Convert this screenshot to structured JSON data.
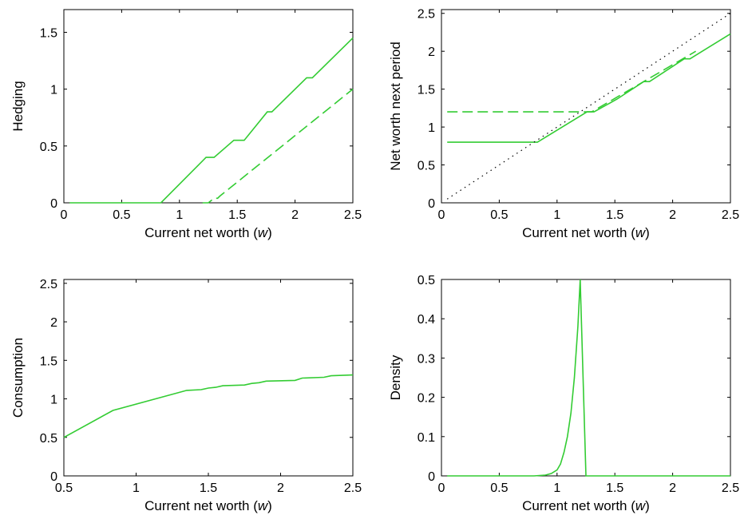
{
  "colors": {
    "line": "#33cc33",
    "axis": "#000000",
    "reference": "#000000"
  },
  "chart_data": [
    {
      "type": "line",
      "title": "",
      "xlabel": "Current net worth",
      "xlabel_var": "w",
      "ylabel": "Hedging",
      "xlim": [
        0,
        2.5
      ],
      "ylim": [
        0,
        1.7
      ],
      "xticks": [
        0,
        0.5,
        1,
        1.5,
        2,
        2.5
      ],
      "xtick_labels": [
        "0",
        "0.5",
        "1",
        "1.5",
        "2",
        "2.5"
      ],
      "yticks": [
        0,
        0.5,
        1,
        1.5
      ],
      "ytick_labels": [
        "0",
        "0.5",
        "1",
        "1.5"
      ],
      "grid": false,
      "legend": "none",
      "series": [
        {
          "style": "solid",
          "x": [
            0.05,
            0.84,
            1.23,
            1.26,
            1.3,
            1.47,
            1.5,
            1.56,
            1.76,
            1.8,
            2.1,
            2.15,
            2.5
          ],
          "y": [
            0,
            0,
            0.4,
            0.4,
            0.4,
            0.55,
            0.55,
            0.55,
            0.8,
            0.8,
            1.1,
            1.1,
            1.45
          ]
        },
        {
          "style": "dashed",
          "x": [
            1.2,
            1.25,
            1.3,
            1.33,
            1.35,
            2.5
          ],
          "y": [
            0,
            0,
            0.04,
            0.04,
            0.06,
            1.0
          ]
        }
      ]
    },
    {
      "type": "line",
      "title": "",
      "xlabel": "Current net worth",
      "xlabel_var": "w",
      "ylabel": "Net worth next period",
      "xlim": [
        0,
        2.5
      ],
      "ylim": [
        0,
        2.55
      ],
      "xticks": [
        0,
        0.5,
        1,
        1.5,
        2,
        2.5
      ],
      "xtick_labels": [
        "0",
        "0.5",
        "1",
        "1.5",
        "2",
        "2.5"
      ],
      "yticks": [
        0,
        0.5,
        1,
        1.5,
        2,
        2.5
      ],
      "ytick_labels": [
        "0",
        "0.5",
        "1",
        "1.5",
        "2",
        "2.5"
      ],
      "grid": false,
      "legend": "none",
      "series": [
        {
          "style": "solid",
          "x": [
            0.05,
            0.83,
            1.26,
            1.32,
            1.52,
            1.75,
            1.8,
            2.1,
            2.15,
            2.5
          ],
          "y": [
            0.8,
            0.8,
            1.2,
            1.2,
            1.37,
            1.6,
            1.6,
            1.9,
            1.9,
            2.23
          ]
        },
        {
          "style": "dashed",
          "x": [
            0.05,
            1.3,
            2.2
          ],
          "y": [
            1.2,
            1.2,
            2.0
          ]
        },
        {
          "style": "dotted",
          "x": [
            0.05,
            2.5
          ],
          "y": [
            0.05,
            2.5
          ]
        }
      ]
    },
    {
      "type": "line",
      "title": "",
      "xlabel": "Current net worth",
      "xlabel_var": "w",
      "ylabel": "Consumption",
      "xlim": [
        0.5,
        2.5
      ],
      "ylim": [
        0,
        2.55
      ],
      "xticks": [
        0.5,
        1,
        1.5,
        2,
        2.5
      ],
      "xtick_labels": [
        "0.5",
        "1",
        "1.5",
        "2",
        "2.5"
      ],
      "yticks": [
        0,
        0.5,
        1,
        1.5,
        2,
        2.5
      ],
      "ytick_labels": [
        "0",
        "0.5",
        "1",
        "1.5",
        "2",
        "2.5"
      ],
      "grid": false,
      "legend": "none",
      "series": [
        {
          "style": "solid",
          "x": [
            0.5,
            0.84,
            1.35,
            1.45,
            1.5,
            1.55,
            1.6,
            1.75,
            1.8,
            1.85,
            1.9,
            2.1,
            2.15,
            2.3,
            2.35,
            2.5
          ],
          "y": [
            0.5,
            0.85,
            1.11,
            1.12,
            1.14,
            1.15,
            1.17,
            1.18,
            1.2,
            1.21,
            1.23,
            1.24,
            1.27,
            1.28,
            1.3,
            1.31
          ]
        }
      ]
    },
    {
      "type": "line",
      "title": "",
      "xlabel": "Current net worth",
      "xlabel_var": "w",
      "ylabel": "Density",
      "xlim": [
        0,
        2.5
      ],
      "ylim": [
        0,
        0.5
      ],
      "xticks": [
        0,
        0.5,
        1,
        1.5,
        2,
        2.5
      ],
      "xtick_labels": [
        "0",
        "0.5",
        "1",
        "1.5",
        "2",
        "2.5"
      ],
      "yticks": [
        0,
        0.1,
        0.2,
        0.3,
        0.4,
        0.5
      ],
      "ytick_labels": [
        "0",
        "0.1",
        "0.2",
        "0.3",
        "0.4",
        "0.5"
      ],
      "grid": false,
      "legend": "none",
      "series": [
        {
          "style": "solid",
          "x": [
            0.05,
            0.8,
            0.9,
            0.95,
            1.0,
            1.03,
            1.06,
            1.09,
            1.12,
            1.15,
            1.18,
            1.2,
            1.25,
            2.5
          ],
          "y": [
            0,
            0,
            0.002,
            0.006,
            0.015,
            0.03,
            0.06,
            0.1,
            0.16,
            0.25,
            0.38,
            0.5,
            0,
            0
          ]
        }
      ]
    }
  ]
}
